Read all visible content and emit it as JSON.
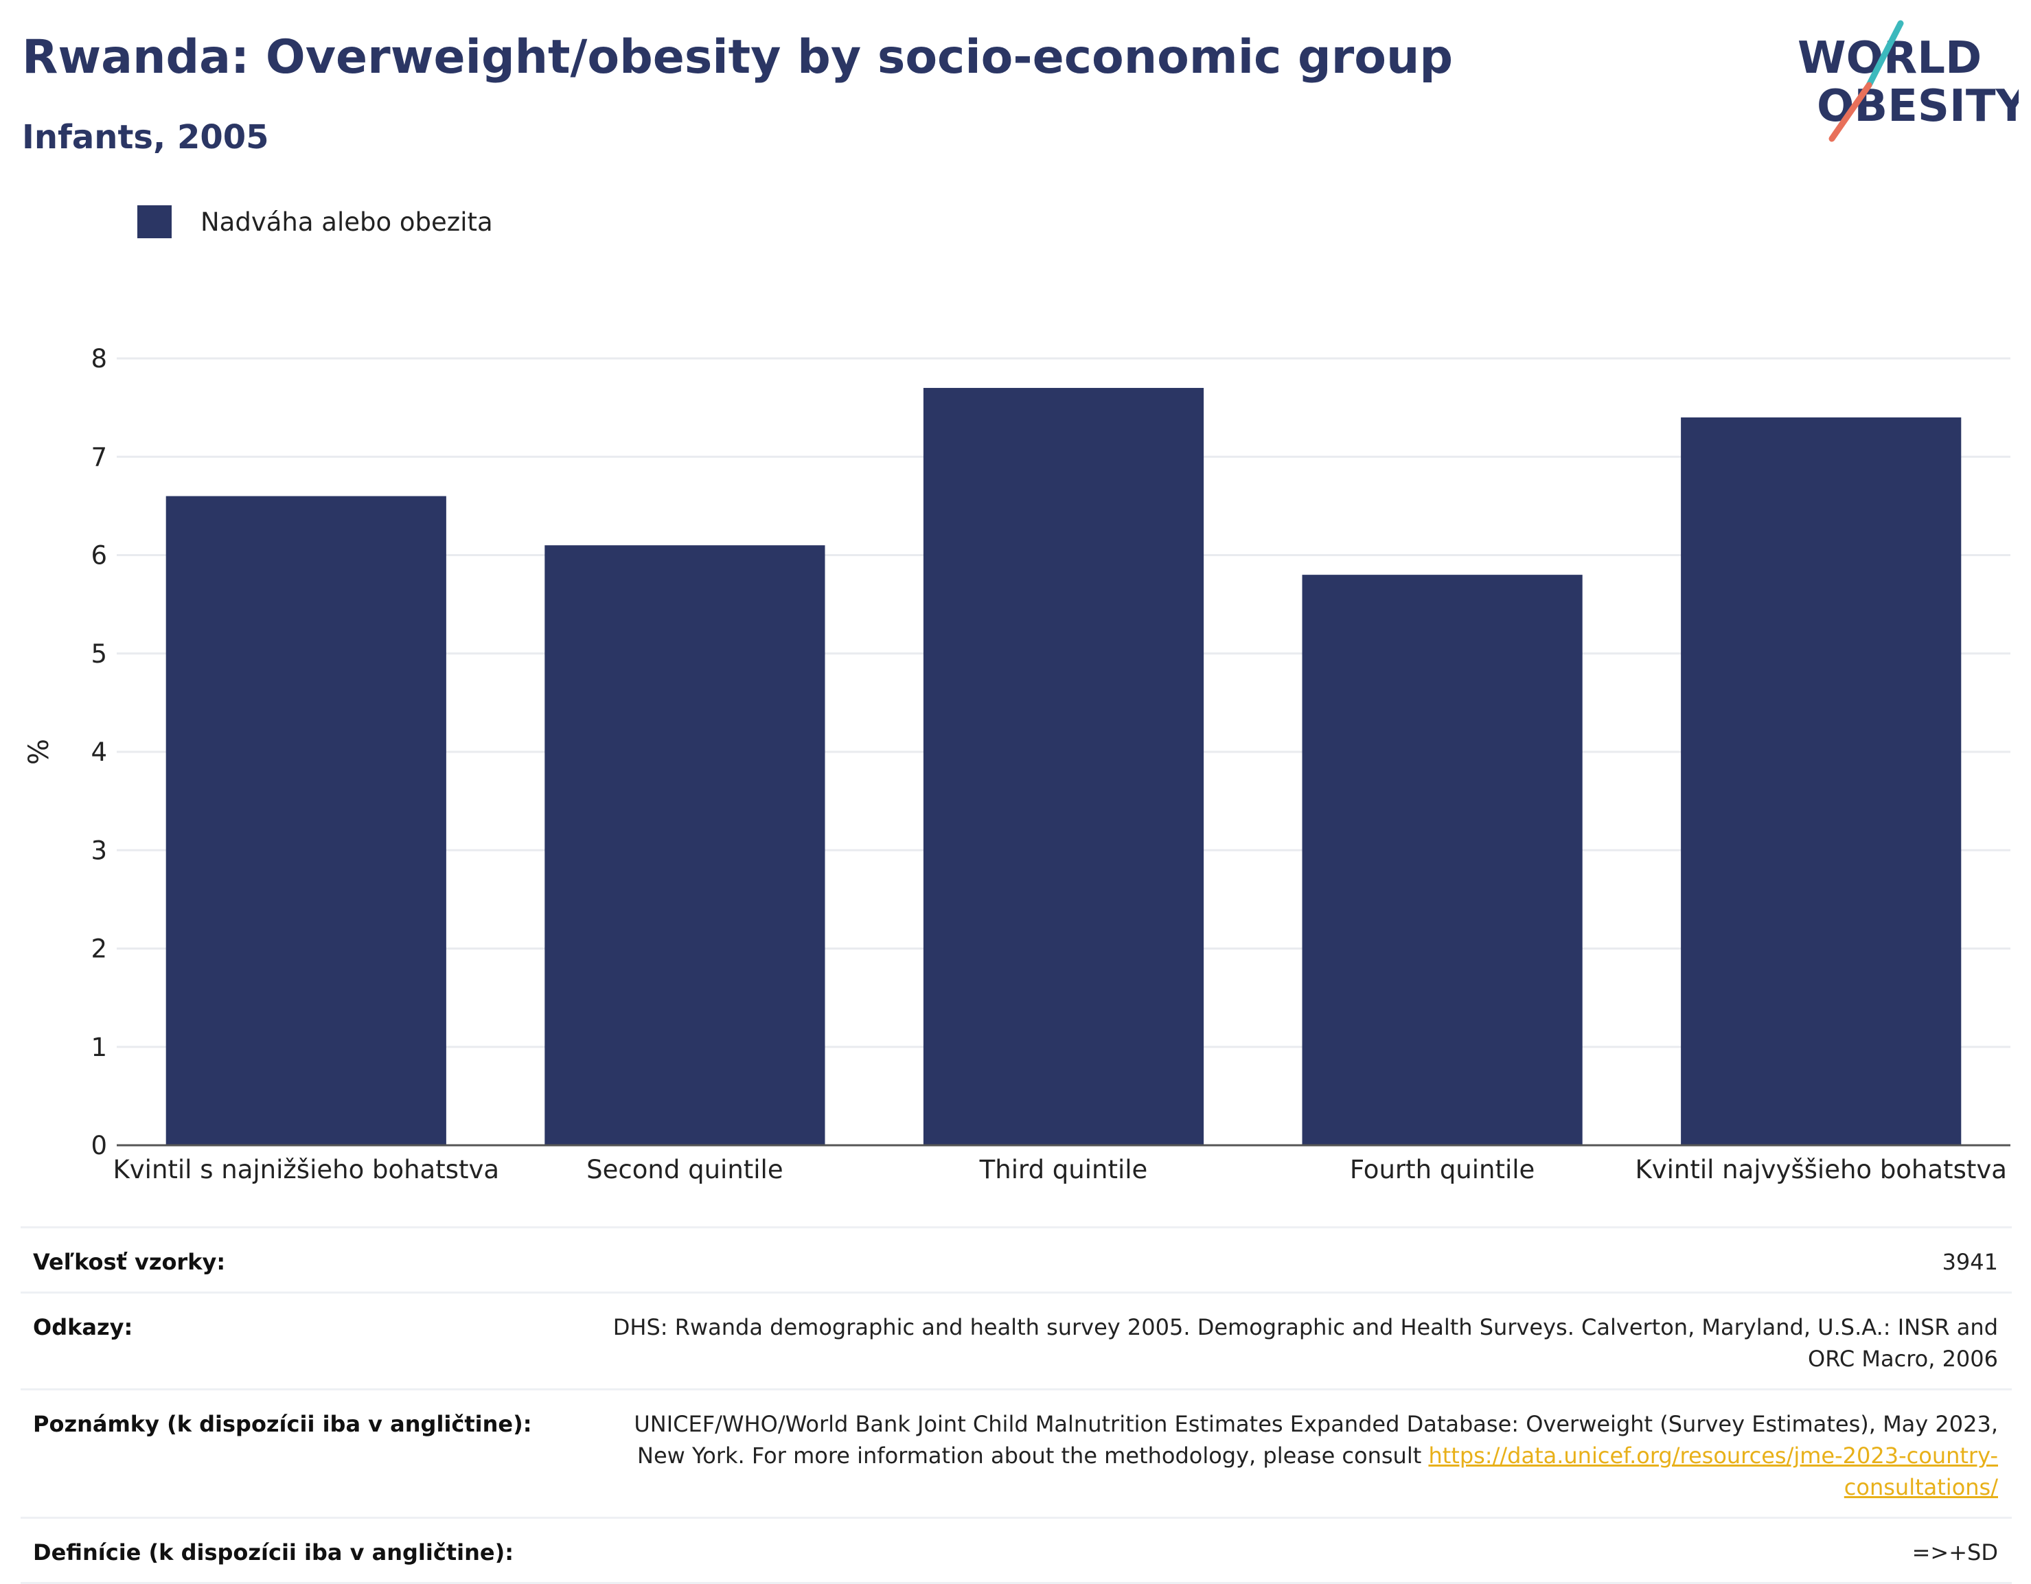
{
  "title": "Rwanda: Overweight/obesity by socio-economic group",
  "subtitle": "Infants, 2005",
  "logo": {
    "line1": "WORLD",
    "line2": "OBESITY"
  },
  "legend": {
    "label": "Nadváha alebo obezita",
    "color": "#2b3664"
  },
  "chart_data": {
    "type": "bar",
    "categories": [
      "Kvintil s najnižšieho bohatstva",
      "Second quintile",
      "Third quintile",
      "Fourth quintile",
      "Kvintil najvyššieho bohatstva"
    ],
    "series": [
      {
        "name": "Nadváha alebo obezita",
        "values": [
          6.6,
          6.1,
          7.7,
          5.8,
          7.4
        ]
      }
    ],
    "ylabel": "%",
    "ylim": [
      0,
      8
    ],
    "yticks": [
      0,
      1,
      2,
      3,
      4,
      5,
      6,
      7,
      8
    ],
    "grid": true,
    "legend_position": "top-left",
    "bar_color": "#2b3664"
  },
  "info": {
    "sample_label": "Veľkosť vzorky:",
    "sample_value": "3941",
    "refs_label": "Odkazy:",
    "refs_value": "DHS: Rwanda demographic and health survey 2005. Demographic and Health Surveys. Calverton, Maryland, U.S.A.: INSR and ORC Macro, 2006",
    "notes_label": "Poznámky (k dispozícii iba v angličtine):",
    "notes_text": "UNICEF/WHO/World Bank Joint Child Malnutrition Estimates Expanded Database: Overweight (Survey Estimates), May 2023, New York. For more information about the methodology, please consult ",
    "notes_link": "https://data.unicef.org/resources/jme-2023-country-consultations/",
    "def_label": "Definície (k dispozícii iba v angličtine):",
    "def_value": "=>+SD"
  }
}
